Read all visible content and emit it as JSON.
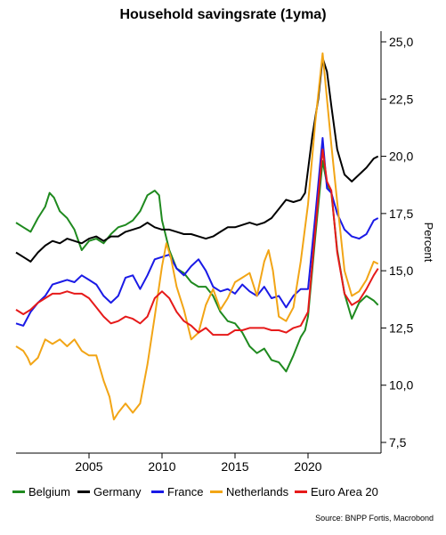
{
  "chart_data": {
    "type": "line",
    "title": "Household savingsrate (1yma)",
    "ylabel": "Percent",
    "xlabel": "",
    "y_axis_position": "right",
    "ylim": [
      7.5,
      25.0
    ],
    "xlim": [
      2000.0,
      2025.0
    ],
    "yticks": [
      "7,5",
      "10,0",
      "12,5",
      "15,0",
      "17,5",
      "20,0",
      "22,5",
      "25,0"
    ],
    "xticks": [
      "2005",
      "2010",
      "2015",
      "2020"
    ],
    "grid": false,
    "legend_position": "bottom",
    "source": "Source: BNPP Fortis, Macrobond",
    "series": [
      {
        "name": "Belgium",
        "color": "#1f8a1f",
        "points": [
          [
            2000.0,
            17.1
          ],
          [
            2000.5,
            16.9
          ],
          [
            2001.0,
            16.7
          ],
          [
            2001.5,
            17.3
          ],
          [
            2002.0,
            17.8
          ],
          [
            2002.3,
            18.4
          ],
          [
            2002.6,
            18.2
          ],
          [
            2003.0,
            17.6
          ],
          [
            2003.5,
            17.3
          ],
          [
            2004.0,
            16.8
          ],
          [
            2004.5,
            15.9
          ],
          [
            2005.0,
            16.3
          ],
          [
            2005.5,
            16.4
          ],
          [
            2006.0,
            16.2
          ],
          [
            2006.5,
            16.6
          ],
          [
            2007.0,
            16.9
          ],
          [
            2007.5,
            17.0
          ],
          [
            2008.0,
            17.2
          ],
          [
            2008.5,
            17.6
          ],
          [
            2009.0,
            18.3
          ],
          [
            2009.5,
            18.5
          ],
          [
            2009.8,
            18.3
          ],
          [
            2010.0,
            17.2
          ],
          [
            2010.5,
            15.9
          ],
          [
            2011.0,
            15.1
          ],
          [
            2011.5,
            14.9
          ],
          [
            2012.0,
            14.5
          ],
          [
            2012.5,
            14.3
          ],
          [
            2013.0,
            14.3
          ],
          [
            2013.5,
            13.9
          ],
          [
            2014.0,
            13.2
          ],
          [
            2014.5,
            12.8
          ],
          [
            2015.0,
            12.7
          ],
          [
            2015.5,
            12.3
          ],
          [
            2016.0,
            11.7
          ],
          [
            2016.5,
            11.4
          ],
          [
            2017.0,
            11.6
          ],
          [
            2017.5,
            11.1
          ],
          [
            2018.0,
            11.0
          ],
          [
            2018.5,
            10.6
          ],
          [
            2019.0,
            11.3
          ],
          [
            2019.5,
            12.1
          ],
          [
            2019.8,
            12.4
          ],
          [
            2020.0,
            13.0
          ],
          [
            2020.5,
            16.5
          ],
          [
            2021.0,
            19.8
          ],
          [
            2021.3,
            18.8
          ],
          [
            2021.6,
            18.4
          ],
          [
            2022.0,
            15.9
          ],
          [
            2022.5,
            14.0
          ],
          [
            2023.0,
            12.9
          ],
          [
            2023.5,
            13.6
          ],
          [
            2024.0,
            13.9
          ],
          [
            2024.5,
            13.7
          ],
          [
            2024.8,
            13.5
          ]
        ]
      },
      {
        "name": "Germany",
        "color": "#000000",
        "points": [
          [
            2000.0,
            15.8
          ],
          [
            2000.5,
            15.6
          ],
          [
            2001.0,
            15.4
          ],
          [
            2001.5,
            15.8
          ],
          [
            2002.0,
            16.1
          ],
          [
            2002.5,
            16.3
          ],
          [
            2003.0,
            16.2
          ],
          [
            2003.5,
            16.4
          ],
          [
            2004.0,
            16.3
          ],
          [
            2004.5,
            16.2
          ],
          [
            2005.0,
            16.4
          ],
          [
            2005.5,
            16.5
          ],
          [
            2006.0,
            16.3
          ],
          [
            2006.5,
            16.5
          ],
          [
            2007.0,
            16.5
          ],
          [
            2007.5,
            16.7
          ],
          [
            2008.0,
            16.8
          ],
          [
            2008.5,
            16.9
          ],
          [
            2009.0,
            17.1
          ],
          [
            2009.5,
            16.9
          ],
          [
            2010.0,
            16.8
          ],
          [
            2010.5,
            16.8
          ],
          [
            2011.0,
            16.7
          ],
          [
            2011.5,
            16.6
          ],
          [
            2012.0,
            16.6
          ],
          [
            2012.5,
            16.5
          ],
          [
            2013.0,
            16.4
          ],
          [
            2013.5,
            16.5
          ],
          [
            2014.0,
            16.7
          ],
          [
            2014.5,
            16.9
          ],
          [
            2015.0,
            16.9
          ],
          [
            2015.5,
            17.0
          ],
          [
            2016.0,
            17.1
          ],
          [
            2016.5,
            17.0
          ],
          [
            2017.0,
            17.1
          ],
          [
            2017.5,
            17.3
          ],
          [
            2018.0,
            17.7
          ],
          [
            2018.5,
            18.1
          ],
          [
            2019.0,
            18.0
          ],
          [
            2019.5,
            18.1
          ],
          [
            2019.8,
            18.4
          ],
          [
            2020.3,
            20.9
          ],
          [
            2020.7,
            22.5
          ],
          [
            2021.0,
            24.3
          ],
          [
            2021.3,
            23.7
          ],
          [
            2021.6,
            22.2
          ],
          [
            2022.0,
            20.3
          ],
          [
            2022.5,
            19.2
          ],
          [
            2023.0,
            18.9
          ],
          [
            2023.5,
            19.2
          ],
          [
            2024.0,
            19.5
          ],
          [
            2024.5,
            19.9
          ],
          [
            2024.8,
            20.0
          ]
        ]
      },
      {
        "name": "France",
        "color": "#1a1ae6",
        "points": [
          [
            2000.0,
            12.7
          ],
          [
            2000.5,
            12.6
          ],
          [
            2001.0,
            13.2
          ],
          [
            2001.5,
            13.6
          ],
          [
            2002.0,
            13.9
          ],
          [
            2002.5,
            14.4
          ],
          [
            2003.0,
            14.5
          ],
          [
            2003.5,
            14.6
          ],
          [
            2004.0,
            14.5
          ],
          [
            2004.5,
            14.8
          ],
          [
            2005.0,
            14.6
          ],
          [
            2005.5,
            14.4
          ],
          [
            2006.0,
            13.9
          ],
          [
            2006.5,
            13.6
          ],
          [
            2007.0,
            13.9
          ],
          [
            2007.5,
            14.7
          ],
          [
            2008.0,
            14.8
          ],
          [
            2008.5,
            14.2
          ],
          [
            2009.0,
            14.8
          ],
          [
            2009.5,
            15.5
          ],
          [
            2010.0,
            15.6
          ],
          [
            2010.5,
            15.7
          ],
          [
            2011.0,
            15.1
          ],
          [
            2011.5,
            14.8
          ],
          [
            2012.0,
            15.2
          ],
          [
            2012.5,
            15.5
          ],
          [
            2013.0,
            15.0
          ],
          [
            2013.5,
            14.3
          ],
          [
            2014.0,
            14.1
          ],
          [
            2014.5,
            14.2
          ],
          [
            2015.0,
            14.0
          ],
          [
            2015.5,
            14.4
          ],
          [
            2016.0,
            14.1
          ],
          [
            2016.5,
            13.9
          ],
          [
            2017.0,
            14.3
          ],
          [
            2017.5,
            13.8
          ],
          [
            2018.0,
            13.9
          ],
          [
            2018.5,
            13.4
          ],
          [
            2019.0,
            13.9
          ],
          [
            2019.5,
            14.2
          ],
          [
            2020.0,
            14.2
          ],
          [
            2020.5,
            17.4
          ],
          [
            2021.0,
            20.8
          ],
          [
            2021.3,
            18.6
          ],
          [
            2021.6,
            18.4
          ],
          [
            2022.0,
            17.5
          ],
          [
            2022.5,
            16.8
          ],
          [
            2023.0,
            16.5
          ],
          [
            2023.5,
            16.4
          ],
          [
            2024.0,
            16.6
          ],
          [
            2024.5,
            17.2
          ],
          [
            2024.8,
            17.3
          ]
        ]
      },
      {
        "name": "Netherlands",
        "color": "#f2a516",
        "points": [
          [
            2000.0,
            11.7
          ],
          [
            2000.5,
            11.5
          ],
          [
            2000.8,
            11.2
          ],
          [
            2001.0,
            10.9
          ],
          [
            2001.5,
            11.2
          ],
          [
            2002.0,
            12.0
          ],
          [
            2002.5,
            11.8
          ],
          [
            2003.0,
            12.0
          ],
          [
            2003.5,
            11.7
          ],
          [
            2004.0,
            12.0
          ],
          [
            2004.5,
            11.5
          ],
          [
            2005.0,
            11.3
          ],
          [
            2005.5,
            11.3
          ],
          [
            2006.0,
            10.2
          ],
          [
            2006.4,
            9.5
          ],
          [
            2006.7,
            8.5
          ],
          [
            2007.0,
            8.8
          ],
          [
            2007.5,
            9.2
          ],
          [
            2008.0,
            8.8
          ],
          [
            2008.5,
            9.2
          ],
          [
            2009.0,
            10.9
          ],
          [
            2009.5,
            13.0
          ],
          [
            2010.0,
            15.2
          ],
          [
            2010.3,
            16.2
          ],
          [
            2010.6,
            15.6
          ],
          [
            2011.0,
            14.3
          ],
          [
            2011.5,
            13.3
          ],
          [
            2012.0,
            12.0
          ],
          [
            2012.5,
            12.3
          ],
          [
            2013.0,
            13.5
          ],
          [
            2013.5,
            14.2
          ],
          [
            2014.0,
            13.3
          ],
          [
            2014.5,
            13.8
          ],
          [
            2015.0,
            14.5
          ],
          [
            2015.5,
            14.7
          ],
          [
            2016.0,
            14.9
          ],
          [
            2016.5,
            13.9
          ],
          [
            2017.0,
            15.4
          ],
          [
            2017.3,
            15.9
          ],
          [
            2017.6,
            15.0
          ],
          [
            2018.0,
            13.0
          ],
          [
            2018.5,
            12.8
          ],
          [
            2019.0,
            13.4
          ],
          [
            2019.5,
            15.4
          ],
          [
            2020.0,
            17.9
          ],
          [
            2020.5,
            21.5
          ],
          [
            2021.0,
            24.5
          ],
          [
            2021.3,
            22.5
          ],
          [
            2021.6,
            20.5
          ],
          [
            2022.0,
            18.0
          ],
          [
            2022.5,
            15.0
          ],
          [
            2023.0,
            13.9
          ],
          [
            2023.5,
            14.1
          ],
          [
            2024.0,
            14.6
          ],
          [
            2024.5,
            15.4
          ],
          [
            2024.8,
            15.3
          ]
        ]
      },
      {
        "name": "Euro Area 20",
        "color": "#e61a1a",
        "points": [
          [
            2000.0,
            13.3
          ],
          [
            2000.5,
            13.1
          ],
          [
            2001.0,
            13.3
          ],
          [
            2001.5,
            13.6
          ],
          [
            2002.0,
            13.8
          ],
          [
            2002.5,
            14.0
          ],
          [
            2003.0,
            14.0
          ],
          [
            2003.5,
            14.1
          ],
          [
            2004.0,
            14.0
          ],
          [
            2004.5,
            14.0
          ],
          [
            2005.0,
            13.8
          ],
          [
            2005.5,
            13.4
          ],
          [
            2006.0,
            13.0
          ],
          [
            2006.5,
            12.7
          ],
          [
            2007.0,
            12.8
          ],
          [
            2007.5,
            13.0
          ],
          [
            2008.0,
            12.9
          ],
          [
            2008.5,
            12.7
          ],
          [
            2009.0,
            13.0
          ],
          [
            2009.5,
            13.8
          ],
          [
            2010.0,
            14.1
          ],
          [
            2010.5,
            13.8
          ],
          [
            2011.0,
            13.2
          ],
          [
            2011.5,
            12.8
          ],
          [
            2012.0,
            12.6
          ],
          [
            2012.5,
            12.3
          ],
          [
            2013.0,
            12.5
          ],
          [
            2013.5,
            12.2
          ],
          [
            2014.0,
            12.2
          ],
          [
            2014.5,
            12.2
          ],
          [
            2015.0,
            12.4
          ],
          [
            2015.5,
            12.4
          ],
          [
            2016.0,
            12.5
          ],
          [
            2016.5,
            12.5
          ],
          [
            2017.0,
            12.5
          ],
          [
            2017.5,
            12.4
          ],
          [
            2018.0,
            12.4
          ],
          [
            2018.5,
            12.3
          ],
          [
            2019.0,
            12.5
          ],
          [
            2019.5,
            12.6
          ],
          [
            2020.0,
            13.2
          ],
          [
            2020.5,
            16.8
          ],
          [
            2021.0,
            20.3
          ],
          [
            2021.3,
            18.9
          ],
          [
            2021.6,
            18.5
          ],
          [
            2022.0,
            15.8
          ],
          [
            2022.5,
            14.0
          ],
          [
            2023.0,
            13.5
          ],
          [
            2023.5,
            13.7
          ],
          [
            2024.0,
            14.2
          ],
          [
            2024.5,
            14.8
          ],
          [
            2024.8,
            15.1
          ]
        ]
      }
    ]
  }
}
